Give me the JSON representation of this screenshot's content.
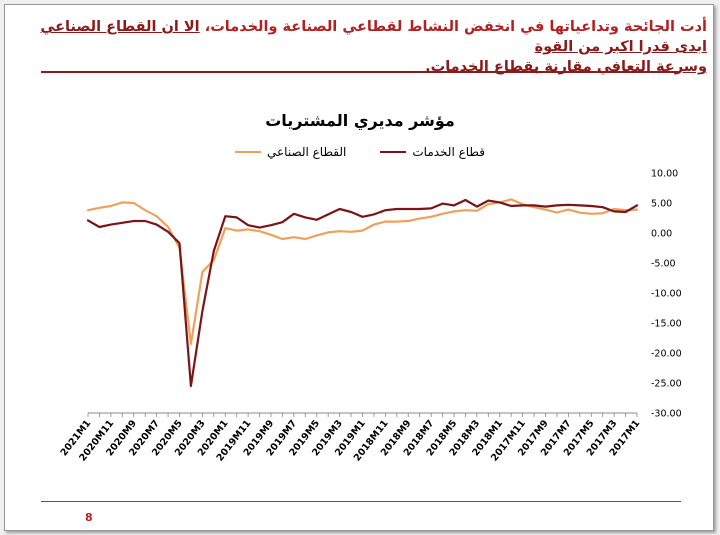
{
  "header": {
    "line1_part1": "أدت الجائحة وتداعياتها في انخفض النشاط لقطاعي الصناعة والخدمات، ",
    "line1_part2": "الا ان القطاع الصناعي ابدى قدرا اكبر من القوة",
    "line2": "وسرعة التعافي مقارنة بقطاع الخدمات."
  },
  "page_number": "8",
  "colors": {
    "industrial": "#f0a05a",
    "services": "#7b1416",
    "accent": "#b22222"
  },
  "chart_data": {
    "type": "line",
    "title": "مؤشر مديري المشتريات",
    "x": [
      "2021M1",
      "2020M12",
      "2020M11",
      "2020M10",
      "2020M9",
      "2020M8",
      "2020M7",
      "2020M6",
      "2020M5",
      "2020M4",
      "2020M3",
      "2020M2",
      "2020M1",
      "2019M12",
      "2019M11",
      "2019M10",
      "2019M9",
      "2019M8",
      "2019M7",
      "2019M6",
      "2019M5",
      "2019M4",
      "2019M3",
      "2019M2",
      "2019M1",
      "2018M12",
      "2018M11",
      "2018M10",
      "2018M9",
      "2018M8",
      "2018M7",
      "2018M6",
      "2018M5",
      "2018M4",
      "2018M3",
      "2018M2",
      "2018M1",
      "2017M12",
      "2017M11",
      "2017M10",
      "2017M9",
      "2017M8",
      "2017M7",
      "2017M6",
      "2017M5",
      "2017M4",
      "2017M3",
      "2017M2",
      "2017M1"
    ],
    "tick_labels": [
      "2021M1",
      "2020M11",
      "2020M9",
      "2020M7",
      "2020M5",
      "2020M3",
      "2020M1",
      "2019M11",
      "2019M9",
      "2019M7",
      "2019M5",
      "2019M3",
      "2019M1",
      "2018M11",
      "2018M9",
      "2018M7",
      "2018M5",
      "2018M3",
      "2018M1",
      "2017M11",
      "2017M9",
      "2017M7",
      "2017M5",
      "2017M3",
      "2017M1"
    ],
    "y_ticks": [
      "10.00",
      "5.00",
      "0.00",
      "-5.00",
      "-10.00",
      "-15.00",
      "-20.00",
      "-25.00",
      "-30.00"
    ],
    "ylim": [
      -30,
      10
    ],
    "y_axis_side": "right",
    "legend_position": "top",
    "series": [
      {
        "name": "القطاع الصناعي",
        "color": "#f0a05a",
        "values": [
          3.8,
          4.2,
          4.5,
          5.1,
          5.0,
          3.8,
          2.8,
          1.0,
          -2.5,
          -18.5,
          -6.5,
          -4.5,
          0.8,
          0.4,
          0.6,
          0.3,
          -0.3,
          -1.0,
          -0.7,
          -1.0,
          -0.4,
          0.1,
          0.3,
          0.2,
          0.4,
          1.4,
          1.9,
          1.9,
          2.0,
          2.4,
          2.7,
          3.2,
          3.6,
          3.8,
          3.7,
          4.8,
          5.1,
          5.6,
          4.8,
          4.3,
          3.9,
          3.4,
          3.9,
          3.4,
          3.2,
          3.3,
          4.0,
          3.8,
          3.9
        ]
      },
      {
        "name": "قطاع الخدمات",
        "color": "#7b1416",
        "values": [
          2.1,
          1.0,
          1.4,
          1.7,
          2.0,
          2.0,
          1.4,
          0.2,
          -1.7,
          -25.5,
          -13.0,
          -3.0,
          2.8,
          2.6,
          1.3,
          0.9,
          1.3,
          1.8,
          3.2,
          2.6,
          2.2,
          3.1,
          4.0,
          3.5,
          2.7,
          3.1,
          3.8,
          4.0,
          4.0,
          4.0,
          4.1,
          4.9,
          4.6,
          5.5,
          4.4,
          5.4,
          5.1,
          4.5,
          4.6,
          4.6,
          4.4,
          4.6,
          4.7,
          4.6,
          4.5,
          4.3,
          3.6,
          3.5,
          4.6
        ]
      }
    ]
  }
}
